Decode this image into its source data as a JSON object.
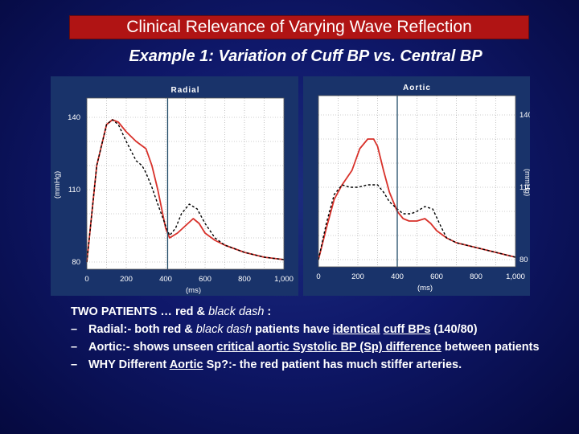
{
  "title": "Clinical Relevance of Varying Wave Reflection",
  "subtitle": "Example 1:  Variation of Cuff BP vs. Central BP",
  "colors": {
    "red_series": "#d8312a",
    "dash_series": "#000000",
    "panel_bg": "#19336a",
    "title_bar": "#b01414"
  },
  "chart_data": [
    {
      "type": "line",
      "title": "Radial",
      "xlabel": "(ms)",
      "ylabel": "(mmHg)",
      "xlim": [
        0,
        1000
      ],
      "ylim": [
        77,
        148
      ],
      "x_ticks": [
        0,
        200,
        400,
        600,
        800,
        1000
      ],
      "x_tick_labels": [
        "0",
        "200",
        "400",
        "600",
        "800",
        "1,000"
      ],
      "y_ticks": [
        80,
        110,
        140
      ],
      "y_tick_labels": [
        "80",
        "110",
        "140"
      ],
      "marker_line_x": 410,
      "grid": true,
      "series": [
        {
          "style": "solid-red",
          "x": [
            0,
            50,
            100,
            130,
            160,
            200,
            250,
            300,
            330,
            360,
            380,
            400,
            420,
            460,
            500,
            540,
            570,
            600,
            650,
            700,
            800,
            900,
            1000
          ],
          "y": [
            80,
            120,
            137,
            139,
            138,
            134,
            130,
            127,
            120,
            110,
            102,
            94,
            90,
            92,
            95,
            98,
            96,
            92,
            89,
            87,
            84,
            82,
            81
          ]
        },
        {
          "style": "dashed-black",
          "x": [
            0,
            50,
            100,
            130,
            160,
            200,
            250,
            280,
            300,
            330,
            360,
            400,
            420,
            450,
            480,
            520,
            560,
            600,
            650,
            700,
            800,
            900,
            1000
          ],
          "y": [
            80,
            120,
            137,
            139,
            137,
            130,
            122,
            120,
            117,
            111,
            104,
            95,
            91,
            94,
            100,
            104,
            102,
            96,
            90,
            87,
            84,
            82,
            81
          ]
        }
      ]
    },
    {
      "type": "line",
      "title": "Aortic",
      "xlabel": "(ms)",
      "ylabel": "(mmHg)",
      "xlim": [
        0,
        1000
      ],
      "ylim": [
        77,
        148
      ],
      "x_ticks": [
        0,
        200,
        400,
        600,
        800,
        1000
      ],
      "x_tick_labels": [
        "0",
        "200",
        "400",
        "600",
        "800",
        "1,000"
      ],
      "y_ticks": [
        80,
        110,
        140
      ],
      "y_tick_labels": [
        "80",
        "110",
        "140"
      ],
      "y_axis_side": "right",
      "marker_line_x": 400,
      "grid": true,
      "series": [
        {
          "style": "solid-red",
          "x": [
            0,
            40,
            80,
            120,
            170,
            210,
            250,
            280,
            300,
            330,
            360,
            400,
            430,
            460,
            500,
            540,
            570,
            600,
            650,
            700,
            800,
            900,
            1000
          ],
          "y": [
            80,
            93,
            105,
            111,
            117,
            126,
            130,
            130,
            127,
            117,
            108,
            100,
            97,
            96,
            96,
            97,
            95,
            92,
            89,
            87,
            85,
            83,
            81
          ]
        },
        {
          "style": "dashed-black",
          "x": [
            0,
            40,
            80,
            120,
            160,
            200,
            250,
            300,
            330,
            360,
            400,
            430,
            470,
            500,
            540,
            580,
            620,
            650,
            700,
            800,
            900,
            1000
          ],
          "y": [
            80,
            95,
            107,
            111,
            110,
            110,
            111,
            111,
            108,
            104,
            101,
            99,
            99,
            100,
            102,
            101,
            94,
            89,
            87,
            85,
            83,
            81
          ]
        }
      ]
    }
  ],
  "notes": {
    "heading_pre": "TWO PATIENTS … red & ",
    "heading_dash": "black dash",
    "heading_post": " :",
    "bullet_marker": "–",
    "bullets": [
      {
        "p1": "Radial:- both red & ",
        "p2": "black dash",
        "p3": " patients have ",
        "u1": "identical",
        "p4": " ",
        "u2": "cuff BPs",
        "p5": " (140/80)"
      },
      {
        "p1": "Aortic:- shows unseen ",
        "u1": "critical aortic Systolic BP (Sp) difference",
        "p2": " between patients"
      },
      {
        "p1": "WHY Different ",
        "u1": "Aortic",
        "p2": " Sp?:- the red patient  has  much stiffer arteries."
      }
    ]
  }
}
